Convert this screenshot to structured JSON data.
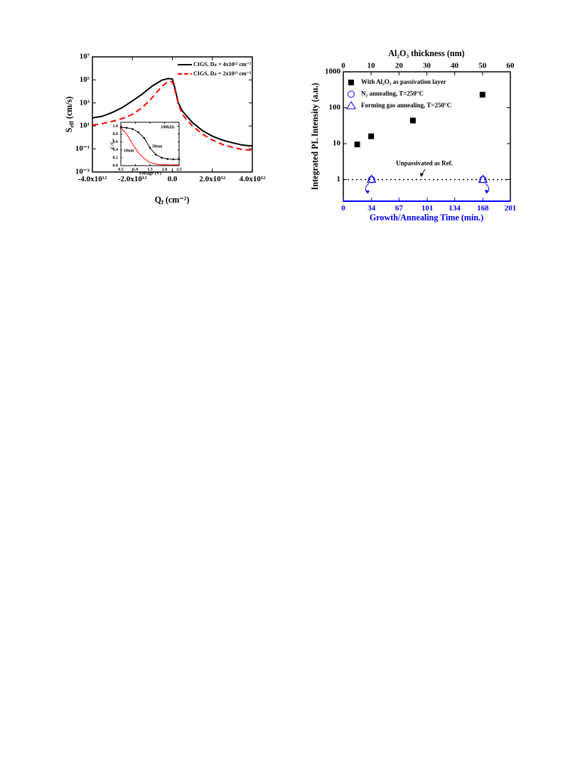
{
  "chart_data": [
    {
      "type": "line",
      "x_label": {
        "base": "Q",
        "sub": "f",
        "rest": " (cm⁻²)"
      },
      "y_label": {
        "base": "S",
        "sub": "eff",
        "rest": " (cm/s)"
      },
      "xlim": [
        -4000000000000.0,
        4000000000000.0
      ],
      "xticks": [
        {
          "value": -4000000000000.0,
          "label": "-4.0x10¹²"
        },
        {
          "value": -2000000000000.0,
          "label": "-2.0x10¹²"
        },
        {
          "value": 0,
          "label": "0.0"
        },
        {
          "value": 2000000000000.0,
          "label": "2.0x10¹²"
        },
        {
          "value": 4000000000000.0,
          "label": "4.0x10¹²"
        }
      ],
      "y_scale": "log",
      "ylim": [
        0.001,
        10000000.0
      ],
      "yticks": [
        {
          "value": 0.001,
          "label": "10⁻³"
        },
        {
          "value": 0.1,
          "label": "10⁻¹"
        },
        {
          "value": 10,
          "label": "10¹"
        },
        {
          "value": 1000,
          "label": "10³"
        },
        {
          "value": 100000,
          "label": "10⁵"
        },
        {
          "value": 10000000.0,
          "label": "10⁷"
        }
      ],
      "legend": "upper right",
      "series": [
        {
          "name": "CIGS, Dᵢₜ = 4x10¹² cm⁻²",
          "color": "#000000",
          "dash": "solid",
          "x": [
            -4000000000000.0,
            -3500000000000.0,
            -3000000000000.0,
            -2500000000000.0,
            -2000000000000.0,
            -1500000000000.0,
            -1000000000000.0,
            -500000000000.0,
            -200000000000.0,
            0,
            100000000000.0,
            300000000000.0,
            500000000000.0,
            1000000000000.0,
            1500000000000.0,
            2000000000000.0,
            2500000000000.0,
            3000000000000.0,
            3500000000000.0,
            4000000000000.0
          ],
          "values": [
            50,
            70,
            150,
            400,
            1500,
            6000,
            30000,
            100000,
            130000,
            120000,
            30000,
            1000,
            200,
            20,
            4,
            1.3,
            0.6,
            0.35,
            0.22,
            0.18
          ]
        },
        {
          "name": "CIGS, Dᵢₜ = 2x10¹³ cm⁻²",
          "color": "#ff0000",
          "dash": "dashed",
          "x": [
            -4000000000000.0,
            -3500000000000.0,
            -3000000000000.0,
            -2500000000000.0,
            -2000000000000.0,
            -1500000000000.0,
            -1000000000000.0,
            -500000000000.0,
            -200000000000.0,
            0,
            100000000000.0,
            300000000000.0,
            500000000000.0,
            1000000000000.0,
            1500000000000.0,
            2000000000000.0,
            2500000000000.0,
            3000000000000.0,
            3500000000000.0,
            4000000000000.0
          ],
          "values": [
            12,
            16,
            25,
            45,
            100,
            400,
            3000,
            30000,
            70000,
            70000,
            20000,
            800,
            100,
            10,
            2,
            0.6,
            0.25,
            0.14,
            0.09,
            0.08
          ]
        }
      ]
    },
    {
      "type": "line",
      "x_label": "Voltage (V)",
      "y_label": "C/Cₒₓ",
      "annotations": [
        "100kHz"
      ],
      "xlim": [
        0.5,
        2.5
      ],
      "xticks": [
        0.5,
        {
          "value": 1,
          "label": "1.0"
        },
        1.5,
        {
          "value": 2,
          "label": "2.0"
        },
        2.5
      ],
      "ylim": [
        0,
        1.1
      ],
      "yticks": [
        {
          "value": 0,
          "label": "0.0"
        },
        0.2,
        0.4,
        0.6,
        0.8,
        {
          "value": 1,
          "label": "1.0"
        }
      ],
      "series": [
        {
          "name": "50nm",
          "color": "#000000",
          "dash": "solid",
          "markers": true,
          "x": [
            0.5,
            0.7,
            0.9,
            1.1,
            1.3,
            1.5,
            1.7,
            1.9,
            2.1,
            2.3,
            2.5
          ],
          "values": [
            0.97,
            0.96,
            0.93,
            0.85,
            0.7,
            0.45,
            0.28,
            0.2,
            0.17,
            0.16,
            0.16
          ]
        },
        {
          "name": "10nm",
          "color": "#ff0000",
          "dash": "solid",
          "x": [
            0.5,
            0.7,
            0.9,
            1.1,
            1.3,
            1.5,
            1.7,
            1.9,
            2.1,
            2.3,
            2.5
          ],
          "values": [
            0.97,
            0.8,
            0.55,
            0.33,
            0.18,
            0.08,
            0.04,
            0.02,
            0.02,
            0.02,
            0.02
          ]
        }
      ]
    },
    {
      "type": "scatter",
      "x_label": "Growth/Annealing Time (min.)",
      "x_axis_color": "#0000ff",
      "x2_label": "Al₂O₃ thickness (nm)",
      "y_label": "Integrated PL Intensity (a.u.)",
      "xlim": [
        0,
        201
      ],
      "xticks": [
        0,
        34,
        67,
        101,
        134,
        168,
        201
      ],
      "x2lim": [
        0,
        60
      ],
      "x2ticks": [
        0,
        10,
        20,
        30,
        40,
        50,
        60
      ],
      "y_scale": "log",
      "ylim": [
        0.25,
        1000
      ],
      "yticks": [
        1,
        10,
        100,
        1000
      ],
      "legend": "upper left",
      "reference_line": {
        "value": 1,
        "label": "Unpassivated as Ref."
      },
      "series": [
        {
          "name": "With Al₂O₃ as passivation layer",
          "color": "#000000",
          "marker": "square",
          "x_axis": "x2",
          "x": [
            5,
            10,
            25,
            50
          ],
          "values": [
            9.5,
            16,
            44,
            230
          ]
        },
        {
          "name": "N₂ annealing, T=250°C",
          "color": "#0000ff",
          "marker": "circle",
          "x": [
            34,
            168
          ],
          "values": [
            1,
            1
          ]
        },
        {
          "name": "Forming gas annealing, T=250°C",
          "color": "#0000ff",
          "marker": "triangle",
          "x": [
            34,
            168
          ],
          "values": [
            1,
            1
          ]
        }
      ]
    }
  ]
}
